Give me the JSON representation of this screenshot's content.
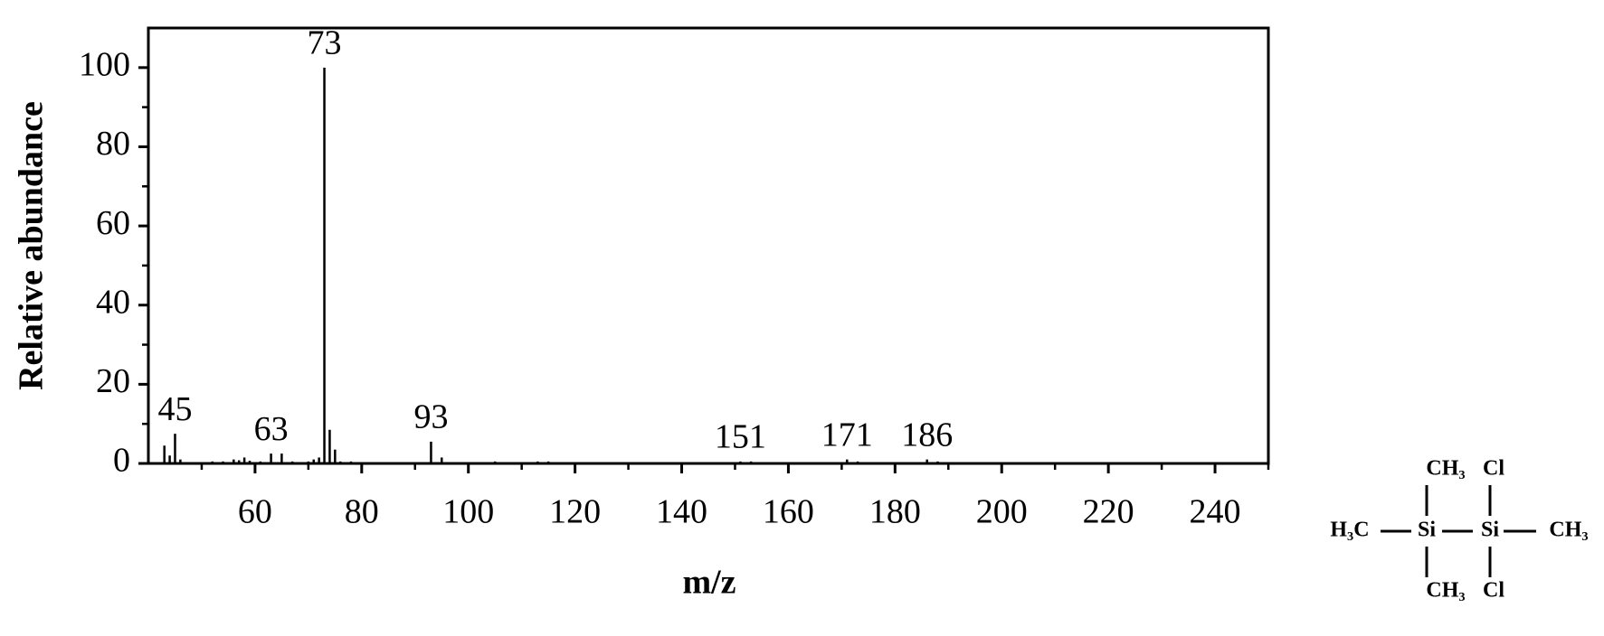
{
  "chart_data": {
    "type": "stick",
    "xlabel": "m/z",
    "ylabel": "Relative abundance",
    "x": [
      43,
      44,
      45,
      46,
      52,
      54,
      56,
      57,
      58,
      59,
      61,
      63,
      65,
      67,
      70,
      71,
      72,
      73,
      74,
      75,
      76,
      78,
      93,
      95,
      105,
      113,
      115,
      151,
      153,
      171,
      173,
      186,
      188
    ],
    "values": [
      4.5,
      2,
      7.5,
      1,
      0.5,
      0.5,
      1,
      0.8,
      1.5,
      0.7,
      0.5,
      2.5,
      2.5,
      0.5,
      0.5,
      1,
      1.5,
      100,
      8.5,
      3.5,
      0.5,
      0.5,
      5.5,
      1.5,
      0.5,
      0.5,
      0.5,
      0.5,
      0.5,
      1,
      0.5,
      1,
      0.5
    ],
    "color": "#000000",
    "peak_labels": [
      45,
      63,
      73,
      93,
      151,
      171,
      186
    ],
    "xlim": [
      40,
      250
    ],
    "ylim": [
      0,
      110
    ],
    "xticks": [
      60,
      80,
      100,
      120,
      140,
      160,
      180,
      200,
      220,
      240
    ],
    "xminorticks": [
      50,
      70,
      90,
      110,
      130,
      150,
      170,
      190,
      210,
      230,
      250
    ],
    "yticks": [
      0,
      20,
      40,
      60,
      80,
      100
    ],
    "yminorticks": [
      10,
      30,
      50,
      70,
      90
    ]
  },
  "structure": {
    "atoms": [
      "CH₃",
      "Cl",
      "H₃C",
      "Si",
      "Si",
      "CH₃",
      "CH₃",
      "Cl"
    ]
  }
}
